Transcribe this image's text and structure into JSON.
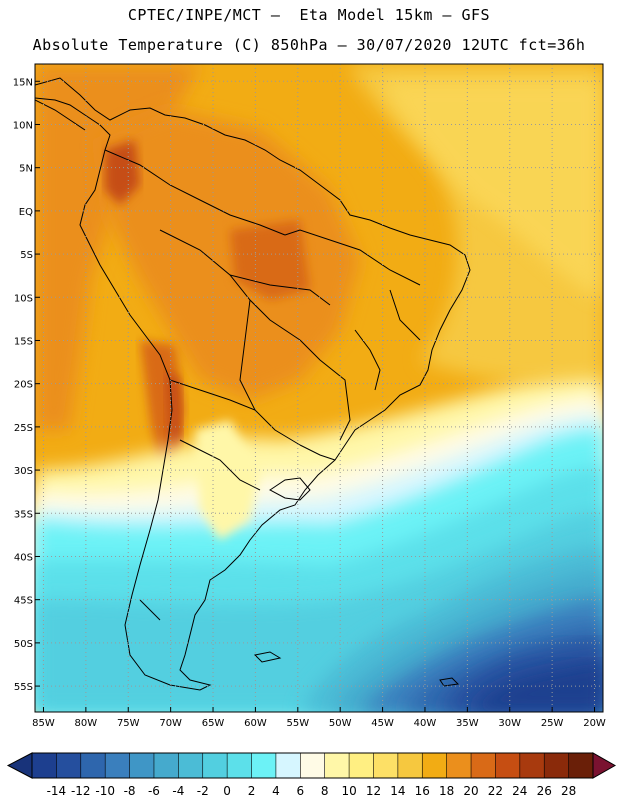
{
  "header": {
    "title_line1": "CPTEC/INPE/MCT –  Eta Model 15km – GFS",
    "title_line2": "Absolute Temperature (C) 850hPa – 30/07/2020 12UTC fct=36h"
  },
  "map": {
    "lon_range": [
      -86,
      -19
    ],
    "lat_range": [
      -58,
      17
    ],
    "lat_ticks": [
      "15N",
      "10N",
      "5N",
      "EQ",
      "5S",
      "10S",
      "15S",
      "20S",
      "25S",
      "30S",
      "35S",
      "40S",
      "45S",
      "50S",
      "55S"
    ],
    "lat_values": [
      15,
      10,
      5,
      0,
      -5,
      -10,
      -15,
      -20,
      -25,
      -30,
      -35,
      -40,
      -45,
      -50,
      -55
    ],
    "lon_ticks": [
      "85W",
      "80W",
      "75W",
      "70W",
      "65W",
      "60W",
      "55W",
      "50W",
      "45W",
      "40W",
      "35W",
      "30W",
      "25W",
      "20W"
    ],
    "lon_values": [
      -85,
      -80,
      -75,
      -70,
      -65,
      -60,
      -55,
      -50,
      -45,
      -40,
      -35,
      -30,
      -25,
      -20
    ],
    "gridlines": "dotted"
  },
  "colorbar": {
    "labels": [
      "-14",
      "-12",
      "-10",
      "-8",
      "-6",
      "-4",
      "-2",
      "0",
      "2",
      "4",
      "6",
      "8",
      "10",
      "12",
      "14",
      "16",
      "18",
      "20",
      "22",
      "24",
      "26",
      "28"
    ],
    "colors": [
      "#1d3f8f",
      "#254f9e",
      "#2e66ad",
      "#3a7fbd",
      "#3f96c6",
      "#45aacd",
      "#4bbcd6",
      "#52cfe0",
      "#5ce0ea",
      "#6cf2f6",
      "#d6f6ff",
      "#fffbe6",
      "#fff7a8",
      "#ffef82",
      "#fde066",
      "#f6c83f",
      "#f2ac14",
      "#eb8f1c",
      "#d96a17",
      "#c64e12",
      "#a83a0e",
      "#8a2a0a",
      "#6a1f08"
    ],
    "under_color": "#18337a",
    "over_color": "#7a1230"
  }
}
